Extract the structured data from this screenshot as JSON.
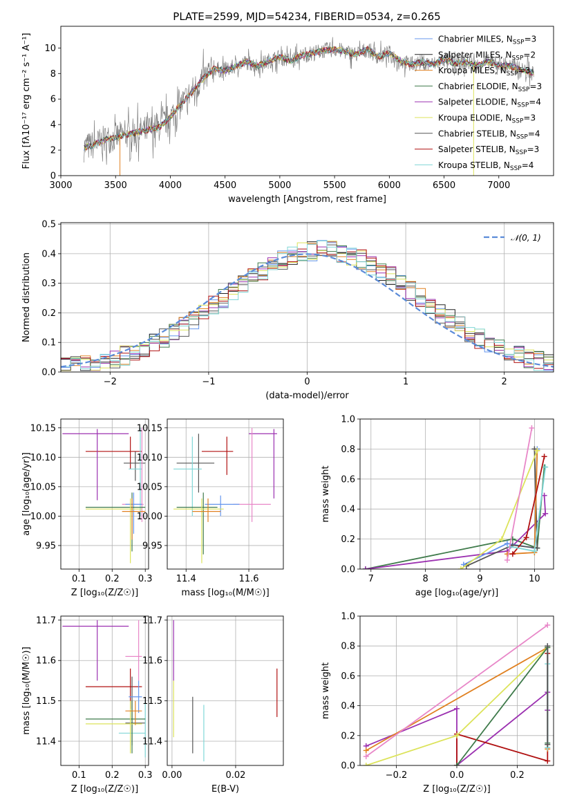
{
  "title": "PLATE=2599, MJD=54234, FIBERID=0534, z=0.265",
  "colors": [
    "#6495ed",
    "#222222",
    "#e08020",
    "#3e7a4a",
    "#9b30b0",
    "#dce35a",
    "#555555",
    "#b01010",
    "#7fd6d6",
    "#e887c8"
  ],
  "chart_data": [
    {
      "id": "spectrum",
      "type": "line",
      "title": "PLATE=2599, MJD=54234, FIBERID=0534, z=0.265",
      "xlabel": "wavelength [Angstrom, rest frame]",
      "ylabel": "Flux [fλ10⁻¹⁷ erg cm⁻² s⁻¹ A⁻¹]",
      "xlim": [
        3000,
        7500
      ],
      "ylim": [
        0,
        11.7
      ],
      "xticks": [
        3000,
        3500,
        4000,
        4500,
        5000,
        5500,
        6000,
        6500,
        7000
      ],
      "yticks": [
        0,
        2,
        4,
        6,
        8,
        10
      ],
      "grid": false,
      "legend_position": "top-right",
      "data_range": [
        3210,
        7320
      ],
      "continuum": {
        "x": [
          3210,
          3300,
          3400,
          3500,
          3600,
          3700,
          3800,
          3900,
          4000,
          4100,
          4200,
          4300,
          4400,
          4500,
          4600,
          4700,
          4800,
          4900,
          5000,
          5100,
          5200,
          5300,
          5400,
          5500,
          5600,
          5700,
          5800,
          5900,
          6000,
          6100,
          6200,
          6300,
          6400,
          6500,
          6600,
          6700,
          6800,
          6900,
          7000,
          7100,
          7200,
          7300
        ],
        "y": [
          2.2,
          2.4,
          2.8,
          3.0,
          3.2,
          3.4,
          3.6,
          3.8,
          4.6,
          5.6,
          6.6,
          7.6,
          8.4,
          8.2,
          8.6,
          8.9,
          8.6,
          9.0,
          9.3,
          9.0,
          9.4,
          9.6,
          9.8,
          9.9,
          9.7,
          9.5,
          9.9,
          9.3,
          9.6,
          9.0,
          8.7,
          8.9,
          8.7,
          9.1,
          8.8,
          8.9,
          8.6,
          8.9,
          8.7,
          8.6,
          8.3,
          8.1
        ]
      },
      "series": [
        {
          "name": "Chabrier MILES, N_SSP=3",
          "color": "#6495ed"
        },
        {
          "name": "Salpeter MILES, N_SSP=2",
          "color": "#222222"
        },
        {
          "name": "Kroupa MILES, N_SSP=3",
          "color": "#e08020"
        },
        {
          "name": "Chabrier ELODIE, N_SSP=3",
          "color": "#3e7a4a"
        },
        {
          "name": "Salpeter ELODIE, N_SSP=4",
          "color": "#9b30b0"
        },
        {
          "name": "Kroupa ELODIE, N_SSP=3",
          "color": "#dce35a"
        },
        {
          "name": "Chabrier STELIB, N_SSP=4",
          "color": "#555555"
        },
        {
          "name": "Salpeter STELIB, N_SSP=3",
          "color": "#b01010"
        },
        {
          "name": "Kroupa STELIB, N_SSP=4",
          "color": "#7fd6d6"
        }
      ]
    },
    {
      "id": "residuals",
      "type": "histogram",
      "xlabel": "(data-model)/error",
      "ylabel": "Normed distribution",
      "xlim": [
        -2.5,
        2.5
      ],
      "ylim": [
        0,
        0.505
      ],
      "xticks": [
        -2,
        -1,
        0,
        1,
        2
      ],
      "yticks": [
        0.0,
        0.1,
        0.2,
        0.3,
        0.4,
        0.5
      ],
      "grid": true,
      "legend": "𝒩(0, 1)",
      "legend_position": "top-right",
      "reference_curve": "normal(0,1)",
      "bins": {
        "start": -2.5,
        "width": 0.1,
        "count": 50
      },
      "series_colors": [
        "#6495ed",
        "#222222",
        "#e08020",
        "#3e7a4a",
        "#9b30b0",
        "#dce35a",
        "#555555",
        "#b01010",
        "#7fd6d6"
      ]
    },
    {
      "id": "age-Z",
      "type": "scatter",
      "xlabel": "Z [log₁₀(Z/Z☉)]",
      "ylabel": "age  [log₁₀(age/yr)]",
      "xlim": [
        0.045,
        0.31
      ],
      "ylim": [
        9.91,
        10.165
      ],
      "xticks": [
        0.1,
        0.2,
        0.3
      ],
      "yticks": [
        9.95,
        10.0,
        10.05,
        10.1,
        10.15
      ],
      "grid": true,
      "points": [
        {
          "x": 0.255,
          "y": 10.11,
          "xl": 0.12,
          "xh": 0.29,
          "yl": 10.08,
          "yh": 10.135,
          "color": "#b01010"
        },
        {
          "x": 0.155,
          "y": 10.14,
          "xl": 0.05,
          "xh": 0.25,
          "yl": 10.027,
          "yh": 10.148,
          "color": "#9b30b0"
        },
        {
          "x": 0.27,
          "y": 10.09,
          "xl": 0.235,
          "xh": 0.3,
          "yl": 10.06,
          "yh": 10.11,
          "color": "#555555"
        },
        {
          "x": 0.285,
          "y": 10.08,
          "xl": 0.25,
          "xh": 0.29,
          "yl": 10.0,
          "yh": 10.15,
          "color": "#7fd6d6"
        },
        {
          "x": 0.29,
          "y": 10.02,
          "xl": 0.23,
          "xh": 0.295,
          "yl": 9.99,
          "yh": 10.15,
          "color": "#e887c8"
        },
        {
          "x": 0.265,
          "y": 10.02,
          "xl": 0.24,
          "xh": 0.29,
          "yl": 9.97,
          "yh": 10.04,
          "color": "#6495ed"
        },
        {
          "x": 0.26,
          "y": 10.015,
          "xl": 0.12,
          "xh": 0.3,
          "yl": 9.94,
          "yh": 10.04,
          "color": "#3e7a4a"
        },
        {
          "x": 0.255,
          "y": 10.012,
          "xl": 0.12,
          "xh": 0.29,
          "yl": 9.92,
          "yh": 10.03,
          "color": "#dce35a"
        },
        {
          "x": 0.26,
          "y": 10.008,
          "xl": 0.23,
          "xh": 0.3,
          "yl": 9.96,
          "yh": 10.03,
          "color": "#e08020"
        }
      ]
    },
    {
      "id": "age-mass",
      "type": "scatter",
      "xlabel": "mass [log₁₀(M/M☉)]",
      "ylabel": "",
      "xlim": [
        11.34,
        11.71
      ],
      "ylim": [
        9.91,
        10.165
      ],
      "xticks": [
        11.4,
        11.6
      ],
      "yticks": [
        9.95,
        10.0,
        10.05,
        10.1,
        10.15
      ],
      "grid": true,
      "points": [
        {
          "x": 11.53,
          "y": 10.11,
          "xl": 11.45,
          "xh": 11.55,
          "yl": 10.07,
          "yh": 10.135,
          "color": "#b01010"
        },
        {
          "x": 11.68,
          "y": 10.14,
          "xl": 11.6,
          "xh": 11.69,
          "yl": 10.03,
          "yh": 10.148,
          "color": "#9b30b0"
        },
        {
          "x": 11.44,
          "y": 10.09,
          "xl": 11.37,
          "xh": 11.49,
          "yl": 10.04,
          "yh": 10.14,
          "color": "#555555"
        },
        {
          "x": 11.42,
          "y": 10.08,
          "xl": 11.36,
          "xh": 11.45,
          "yl": 10.0,
          "yh": 10.135,
          "color": "#7fd6d6"
        },
        {
          "x": 11.61,
          "y": 10.02,
          "xl": 11.55,
          "xh": 11.67,
          "yl": 9.99,
          "yh": 10.15,
          "color": "#e887c8"
        },
        {
          "x": 11.51,
          "y": 10.02,
          "xl": 11.46,
          "xh": 11.57,
          "yl": 10.0,
          "yh": 10.035,
          "color": "#6495ed"
        },
        {
          "x": 11.455,
          "y": 10.015,
          "xl": 11.37,
          "xh": 11.5,
          "yl": 9.935,
          "yh": 10.04,
          "color": "#3e7a4a"
        },
        {
          "x": 11.45,
          "y": 10.012,
          "xl": 11.36,
          "xh": 11.52,
          "yl": 9.92,
          "yh": 10.03,
          "color": "#dce35a"
        },
        {
          "x": 11.47,
          "y": 10.008,
          "xl": 11.42,
          "xh": 11.51,
          "yl": 9.99,
          "yh": 10.03,
          "color": "#e08020"
        }
      ]
    },
    {
      "id": "weight-age",
      "type": "line",
      "xlabel": "age  [log₁₀(age/yr)]",
      "ylabel": "mass weight",
      "xlim": [
        6.8,
        10.35
      ],
      "ylim": [
        0,
        1.0
      ],
      "xticks": [
        7,
        8,
        9,
        10
      ],
      "yticks": [
        0.0,
        0.2,
        0.4,
        0.6,
        0.8,
        1.0
      ],
      "grid": true,
      "series": [
        {
          "color": "#3e7a4a",
          "x": [
            6.9,
            9.6,
            10.05,
            10.18
          ],
          "y": [
            0.0,
            0.2,
            0.14,
            0.68
          ]
        },
        {
          "color": "#9b30b0",
          "x": [
            6.9,
            9.5,
            10.2,
            10.18
          ],
          "y": [
            0.0,
            0.12,
            0.37,
            0.49
          ]
        },
        {
          "color": "#6495ed",
          "x": [
            8.7,
            9.5,
            10.0,
            10.05
          ],
          "y": [
            0.03,
            0.17,
            0.14,
            0.8
          ]
        },
        {
          "color": "#555555",
          "x": [
            8.75,
            9.6,
            10.05,
            10.0
          ],
          "y": [
            0.02,
            0.16,
            0.14,
            0.8
          ]
        },
        {
          "color": "#e08020",
          "x": [
            9.5,
            10.0,
            10.05
          ],
          "y": [
            0.1,
            0.11,
            0.79
          ]
        },
        {
          "color": "#dce35a",
          "x": [
            8.65,
            9.4,
            10.05
          ],
          "y": [
            0.0,
            0.2,
            0.79
          ]
        },
        {
          "color": "#b01010",
          "x": [
            9.6,
            9.85,
            10.18
          ],
          "y": [
            0.1,
            0.21,
            0.75
          ]
        },
        {
          "color": "#7fd6d6",
          "x": [
            9.55,
            10.0,
            10.2
          ],
          "y": [
            0.15,
            0.12,
            0.68
          ]
        },
        {
          "color": "#e887c8",
          "x": [
            9.5,
            9.95
          ],
          "y": [
            0.06,
            0.94
          ]
        }
      ]
    },
    {
      "id": "mass-Z",
      "type": "scatter",
      "xlabel": "Z [log₁₀(Z/Z☉)]",
      "ylabel": "mass [log₁₀(M/M☉)]",
      "xlim": [
        0.045,
        0.31
      ],
      "ylim": [
        11.34,
        11.71
      ],
      "xticks": [
        0.1,
        0.2,
        0.3
      ],
      "yticks": [
        11.4,
        11.5,
        11.6,
        11.7
      ],
      "grid": true,
      "points": [
        {
          "x": 0.255,
          "y": 11.535,
          "xl": 0.12,
          "xh": 0.29,
          "yl": 11.48,
          "yh": 11.58,
          "color": "#b01010"
        },
        {
          "x": 0.155,
          "y": 11.685,
          "xl": 0.05,
          "xh": 0.25,
          "yl": 11.55,
          "yh": 11.7,
          "color": "#9b30b0"
        },
        {
          "x": 0.26,
          "y": 11.445,
          "xl": 0.24,
          "xh": 0.3,
          "yl": 11.39,
          "yh": 11.56,
          "color": "#555555"
        },
        {
          "x": 0.3,
          "y": 11.42,
          "xl": 0.22,
          "xh": 0.3,
          "yl": 11.36,
          "yh": 11.5,
          "color": "#7fd6d6"
        },
        {
          "x": 0.28,
          "y": 11.61,
          "xl": 0.24,
          "xh": 0.29,
          "yl": 11.55,
          "yh": 11.7,
          "color": "#e887c8"
        },
        {
          "x": 0.28,
          "y": 11.51,
          "xl": 0.25,
          "xh": 0.29,
          "yl": 11.47,
          "yh": 11.55,
          "color": "#6495ed"
        },
        {
          "x": 0.26,
          "y": 11.455,
          "xl": 0.12,
          "xh": 0.3,
          "yl": 11.37,
          "yh": 11.5,
          "color": "#3e7a4a"
        },
        {
          "x": 0.255,
          "y": 11.443,
          "xl": 0.12,
          "xh": 0.29,
          "yl": 11.37,
          "yh": 11.5,
          "color": "#dce35a"
        },
        {
          "x": 0.27,
          "y": 11.475,
          "xl": 0.24,
          "xh": 0.29,
          "yl": 11.44,
          "yh": 11.5,
          "color": "#e08020"
        }
      ]
    },
    {
      "id": "mass-ebv",
      "type": "scatter",
      "xlabel": "E(B-V)",
      "ylabel": "",
      "xlim": [
        -0.0015,
        0.035
      ],
      "ylim": [
        11.34,
        11.71
      ],
      "xticks": [
        0.0,
        0.02
      ],
      "yticks": [
        11.4,
        11.5,
        11.6,
        11.7
      ],
      "grid": true,
      "points": [
        {
          "x": 0.0005,
          "y": 11.62,
          "yl": 11.55,
          "yh": 11.7,
          "color": "#9b30b0"
        },
        {
          "x": 0.0005,
          "y": 11.48,
          "yl": 11.41,
          "yh": 11.55,
          "color": "#dce35a"
        },
        {
          "x": 0.0065,
          "y": 11.44,
          "yl": 11.37,
          "yh": 11.51,
          "color": "#555555"
        },
        {
          "x": 0.01,
          "y": 11.42,
          "yl": 11.35,
          "yh": 11.49,
          "color": "#7fd6d6"
        },
        {
          "x": 0.033,
          "y": 11.52,
          "yl": 11.46,
          "yh": 11.58,
          "color": "#b01010"
        }
      ]
    },
    {
      "id": "weight-Z",
      "type": "line",
      "xlabel": "Z [log₁₀(Z/Z☉)]",
      "ylabel": "mass weight",
      "xlim": [
        -0.32,
        0.32
      ],
      "ylim": [
        0,
        1.0
      ],
      "xticks": [
        -0.2,
        0.0,
        0.2
      ],
      "yticks": [
        0.0,
        0.2,
        0.4,
        0.6,
        0.8,
        1.0
      ],
      "grid": true,
      "series": [
        {
          "color": "#9b30b0",
          "x": [
            -0.3,
            0.0,
            0.0,
            0.3,
            0.3
          ],
          "y": [
            0.13,
            0.38,
            0.0,
            0.49,
            0.37
          ]
        },
        {
          "color": "#b01010",
          "x": [
            0.0,
            0.0,
            0.3,
            0.3
          ],
          "y": [
            0.0,
            0.21,
            0.03,
            0.75
          ]
        },
        {
          "color": "#e08020",
          "x": [
            -0.3,
            0.3,
            0.3
          ],
          "y": [
            0.1,
            0.79,
            0.11
          ]
        },
        {
          "color": "#dce35a",
          "x": [
            -0.3,
            0.0,
            0.3
          ],
          "y": [
            0.0,
            0.2,
            0.79
          ]
        },
        {
          "color": "#3e7a4a",
          "x": [
            0.0,
            0.3,
            0.3
          ],
          "y": [
            0.0,
            0.79,
            0.15
          ]
        },
        {
          "color": "#6495ed",
          "x": [
            0.3,
            0.3
          ],
          "y": [
            0.14,
            0.8
          ]
        },
        {
          "color": "#7fd6d6",
          "x": [
            0.3,
            0.3
          ],
          "y": [
            0.12,
            0.68
          ]
        },
        {
          "color": "#555555",
          "x": [
            0.3,
            0.3
          ],
          "y": [
            0.14,
            0.8
          ]
        },
        {
          "color": "#e887c8",
          "x": [
            -0.3,
            0.3
          ],
          "y": [
            0.06,
            0.94
          ]
        }
      ]
    }
  ]
}
